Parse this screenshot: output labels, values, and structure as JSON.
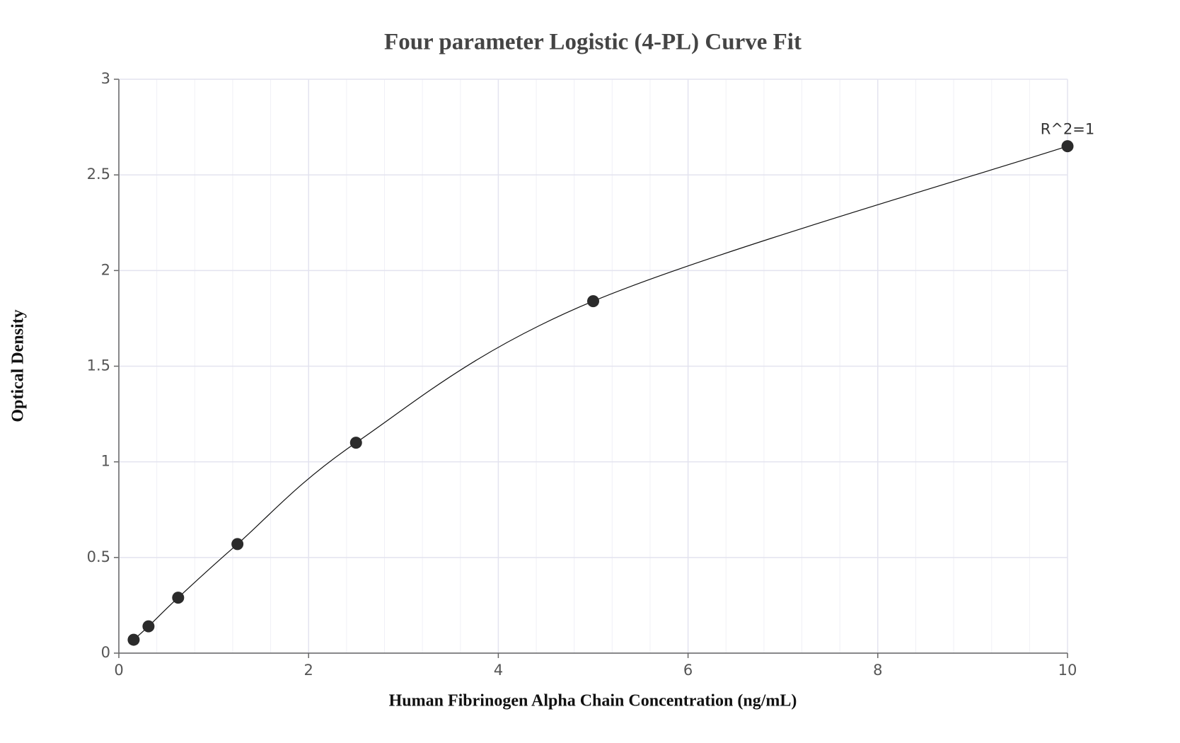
{
  "chart_data": {
    "type": "scatter",
    "title": "Four parameter Logistic (4-PL) Curve Fit",
    "x_label": "Human Fibrinogen Alpha Chain Concentration (ng/mL)",
    "y_label": "Optical Density",
    "x": [
      0.156,
      0.3125,
      0.625,
      1.25,
      2.5,
      5,
      10
    ],
    "series": [
      {
        "color": "#2b2b2b",
        "values": [
          0.07,
          0.14,
          0.29,
          0.57,
          1.1,
          1.84,
          2.65
        ]
      }
    ],
    "annotation": "R^2=1",
    "xlim": [
      0,
      10
    ],
    "xticks": [
      0,
      2,
      4,
      6,
      8,
      10
    ],
    "ylim": [
      0,
      3
    ],
    "yticks": [
      0,
      0.5,
      1,
      1.5,
      2,
      2.5,
      3
    ],
    "grid": true
  }
}
